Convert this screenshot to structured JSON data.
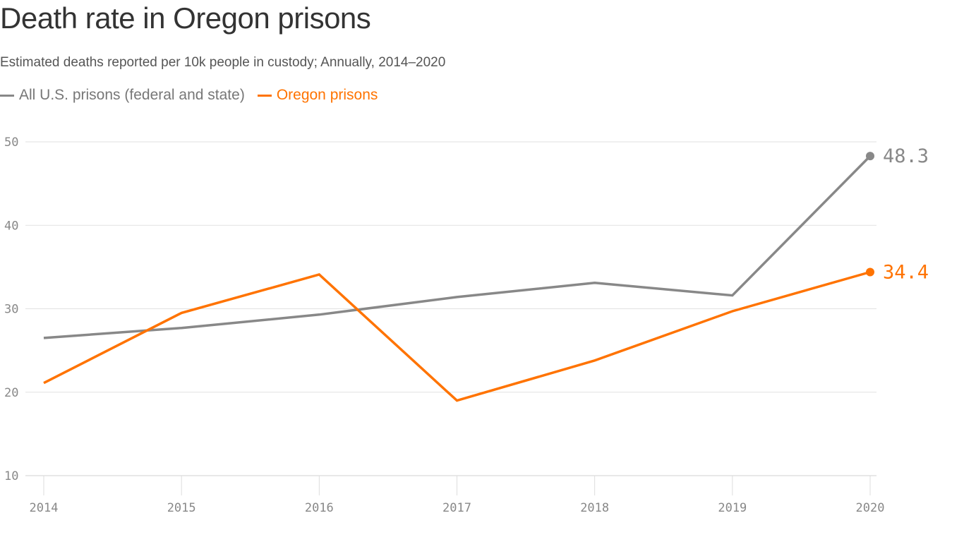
{
  "chart_data": {
    "type": "line",
    "title": "Death rate in Oregon prisons",
    "subtitle": "Estimated deaths reported per 10k people in custody; Annually, 2014–2020",
    "x": [
      "2014",
      "2015",
      "2016",
      "2017",
      "2018",
      "2019",
      "2020"
    ],
    "ylim": [
      10,
      50
    ],
    "yticks": [
      10,
      20,
      30,
      40,
      50
    ],
    "grid": true,
    "legend_position": "top-left",
    "series": [
      {
        "name": "All U.S. prisons (federal and state)",
        "color": "#888888",
        "values": [
          26.5,
          27.7,
          29.3,
          31.4,
          33.1,
          31.6,
          48.3
        ],
        "end_label": "48.3"
      },
      {
        "name": "Oregon prisons",
        "color": "#ff7300",
        "values": [
          21.1,
          29.5,
          34.1,
          19.0,
          23.8,
          29.7,
          34.4
        ],
        "end_label": "34.4"
      }
    ]
  }
}
